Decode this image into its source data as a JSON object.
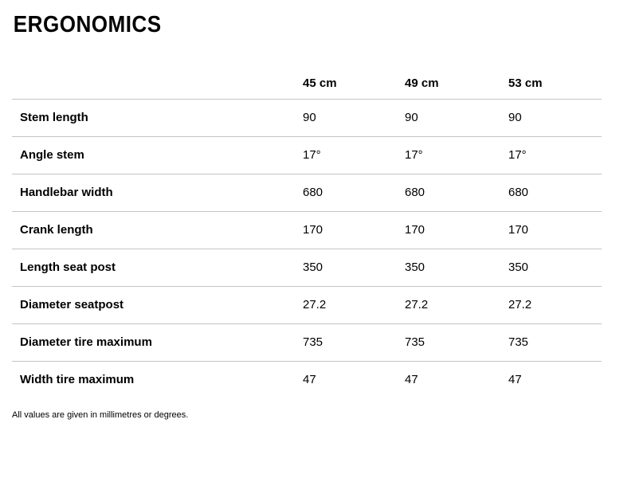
{
  "page": {
    "title": "ERGONOMICS",
    "footnote": "All values are given in millimetres or degrees."
  },
  "colors": {
    "text": "#000000",
    "divider": "#c4c4c4",
    "background": "#ffffff"
  },
  "chart_data": {
    "type": "table",
    "title": "ERGONOMICS",
    "columns": [
      "45 cm",
      "49 cm",
      "53 cm"
    ],
    "rows": [
      {
        "label": "Stem length",
        "values": [
          "90",
          "90",
          "90"
        ]
      },
      {
        "label": "Angle stem",
        "values": [
          "17°",
          "17°",
          "17°"
        ]
      },
      {
        "label": "Handlebar width",
        "values": [
          "680",
          "680",
          "680"
        ]
      },
      {
        "label": "Crank length",
        "values": [
          "170",
          "170",
          "170"
        ]
      },
      {
        "label": "Length seat post",
        "values": [
          "350",
          "350",
          "350"
        ]
      },
      {
        "label": "Diameter seatpost",
        "values": [
          "27.2",
          "27.2",
          "27.2"
        ]
      },
      {
        "label": "Diameter tire maximum",
        "values": [
          "735",
          "735",
          "735"
        ]
      },
      {
        "label": "Width tire maximum",
        "values": [
          "47",
          "47",
          "47"
        ]
      }
    ],
    "footnote": "All values are given in millimetres or degrees.",
    "layout": {
      "grid": "horizontal-dividers-only",
      "last_row_divider": false
    }
  }
}
